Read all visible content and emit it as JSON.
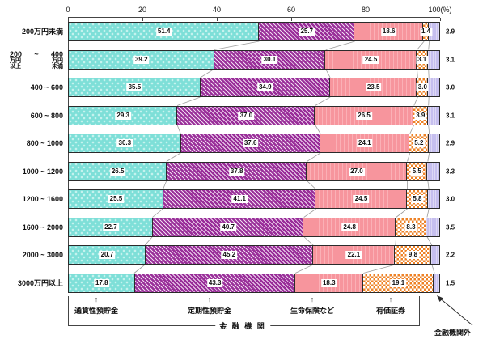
{
  "chart_data": {
    "type": "bar",
    "stacked": true,
    "orientation": "horizontal",
    "value_unit": "%",
    "xlim": [
      0,
      100
    ],
    "grid": false,
    "x_ticks": [
      0,
      20,
      40,
      60,
      80,
      100
    ],
    "x_tick_labels": [
      "0",
      "20",
      "40",
      "60",
      "80",
      "100(%)"
    ],
    "series": [
      {
        "name": "通貨性預貯金",
        "values": [
          51.4,
          39.2,
          35.5,
          29.3,
          30.3,
          26.5,
          25.5,
          22.7,
          20.7,
          17.8
        ]
      },
      {
        "name": "定期性預貯金",
        "values": [
          25.7,
          30.1,
          34.9,
          37.0,
          37.6,
          37.8,
          41.1,
          40.7,
          45.2,
          43.3
        ]
      },
      {
        "name": "生命保険など",
        "values": [
          18.6,
          24.5,
          23.5,
          26.5,
          24.1,
          27.0,
          24.5,
          24.8,
          22.1,
          18.3
        ]
      },
      {
        "name": "有価証券",
        "values": [
          1.4,
          3.1,
          3.0,
          3.9,
          5.2,
          5.5,
          5.8,
          8.3,
          9.8,
          19.1
        ]
      },
      {
        "name": "金融機関外",
        "values": [
          2.9,
          3.1,
          3.0,
          3.1,
          2.9,
          3.3,
          3.0,
          3.5,
          2.2,
          1.5
        ]
      }
    ],
    "categories": [
      "200万円未満",
      "200万円以上 400万円未満",
      "400 ~ 600",
      "600 ~ 800",
      "800 ~ 1000",
      "1000 ~ 1200",
      "1200 ~ 1600",
      "1600 ~ 2000",
      "2000 ~ 3000",
      "3000万円以上"
    ],
    "category_label_lines": [
      [
        "200万円未満"
      ],
      [
        "200|~|400",
        "万円|万円",
        "以上|未満"
      ],
      [
        "400 ~ 600"
      ],
      [
        "600 ~ 800"
      ],
      [
        "800 ~ 1000"
      ],
      [
        "1000 ~ 1200"
      ],
      [
        "1200 ~ 1600"
      ],
      [
        "1600 ~ 2000"
      ],
      [
        "2000 ~ 3000"
      ],
      [
        "3000万円以上"
      ]
    ],
    "group_bracket_label": "金 融 機 関",
    "outside_group_label": "金融機関外",
    "colors": {
      "currency_deposits": "#7EDFD8",
      "time_deposits": "#992E99",
      "life_insurance": "#F7959D",
      "securities": "#EE8226",
      "outside_financial": "#C6BFEF",
      "border": "#2b2b2b",
      "connector": "#9b9b9b"
    }
  }
}
